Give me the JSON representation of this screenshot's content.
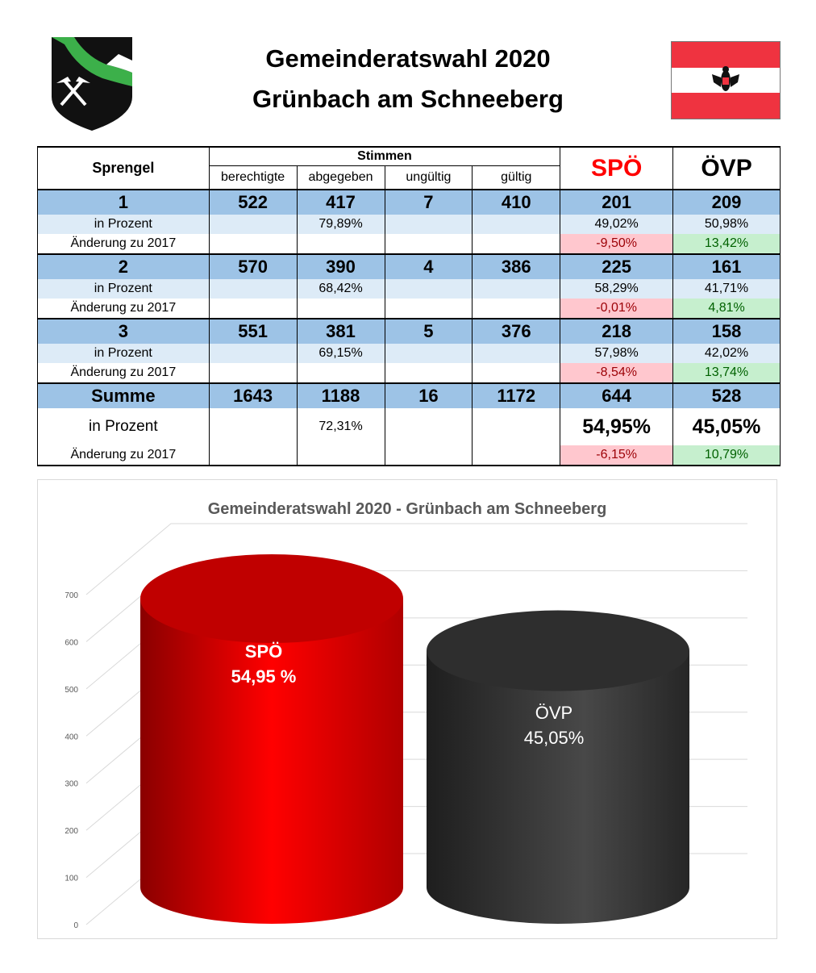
{
  "header": {
    "title_line1": "Gemeinderatswahl 2020",
    "title_line2": "Grünbach am Schneeberg"
  },
  "table": {
    "col_sprengel": "Sprengel",
    "col_stimmen": "Stimmen",
    "sub_cols": [
      "berechtigte",
      "abgegeben",
      "ungültig",
      "gültig"
    ],
    "party1": "SPÖ",
    "party2": "ÖVP",
    "label_prozent": "in Prozent",
    "label_aenderung": "Änderung zu 2017",
    "rows": [
      {
        "name": "1",
        "berechtigte": "522",
        "abgegeben": "417",
        "ungueltig": "7",
        "gueltig": "410",
        "spo": "201",
        "ovp": "209",
        "pct_abgegeben": "79,89%",
        "pct_spo": "49,02%",
        "pct_ovp": "50,98%",
        "chg_spo": "-9,50%",
        "chg_ovp": "13,42%"
      },
      {
        "name": "2",
        "berechtigte": "570",
        "abgegeben": "390",
        "ungueltig": "4",
        "gueltig": "386",
        "spo": "225",
        "ovp": "161",
        "pct_abgegeben": "68,42%",
        "pct_spo": "58,29%",
        "pct_ovp": "41,71%",
        "chg_spo": "-0,01%",
        "chg_ovp": "4,81%"
      },
      {
        "name": "3",
        "berechtigte": "551",
        "abgegeben": "381",
        "ungueltig": "5",
        "gueltig": "376",
        "spo": "218",
        "ovp": "158",
        "pct_abgegeben": "69,15%",
        "pct_spo": "57,98%",
        "pct_ovp": "42,02%",
        "chg_spo": "-8,54%",
        "chg_ovp": "13,74%"
      },
      {
        "name": "Summe",
        "berechtigte": "1643",
        "abgegeben": "1188",
        "ungueltig": "16",
        "gueltig": "1172",
        "spo": "644",
        "ovp": "528",
        "pct_abgegeben": "72,31%",
        "pct_spo": "54,95%",
        "pct_ovp": "45,05%",
        "chg_spo": "-6,15%",
        "chg_ovp": "10,79%"
      }
    ]
  },
  "chart_data": {
    "type": "bar",
    "title": "Gemeinderatswahl 2020 - Grünbach am Schneeberg",
    "categories": [
      "SPÖ",
      "ÖVP"
    ],
    "values": [
      644,
      528
    ],
    "data_labels": [
      [
        "SPÖ",
        "54,95 %"
      ],
      [
        "ÖVP",
        "45,05%"
      ]
    ],
    "colors": [
      "#ff0000",
      "#3a3a3a"
    ],
    "yticks": [
      0,
      100,
      200,
      300,
      400,
      500,
      600,
      700
    ],
    "ylim": [
      0,
      700
    ],
    "grid": true,
    "xlabel": "",
    "ylabel": ""
  }
}
